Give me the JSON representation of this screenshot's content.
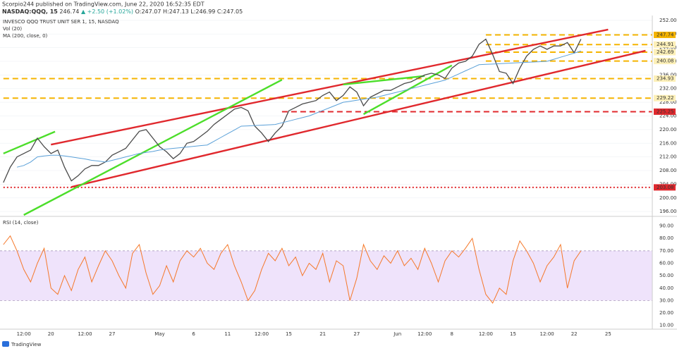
{
  "header": {
    "publisher": "Scorpio244 published on TradingView.com, June 22, 2020 16:52:35 EDT",
    "symbol": "NASDAQ:QQQ, 15",
    "price": "246.74",
    "change": "▲ +2.50 (+1.02%)",
    "ohlc": "O:247.07 H:247.13 L:246.99 C:247.05"
  },
  "footer": "TradingView",
  "chart_data": [
    {
      "type": "line",
      "vol_label": "Vol (20)",
      "categories": [
        null,
        null,
        null,
        "12:00",
        null,
        null,
        null,
        "20",
        null,
        null,
        null,
        null,
        "12:00",
        null,
        null,
        null,
        "27",
        null,
        null,
        null,
        null,
        null,
        null,
        "May",
        null,
        null,
        null,
        null,
        "6",
        null,
        null,
        null,
        null,
        "11",
        null,
        null,
        null,
        null,
        "12:00",
        null,
        null,
        null,
        "15",
        null,
        null,
        null,
        null,
        "21",
        null,
        null,
        null,
        null,
        "27",
        null,
        null,
        null,
        null,
        null,
        "Jun",
        null,
        null,
        null,
        "12:00",
        null,
        null,
        null,
        "8",
        null,
        null,
        null,
        null,
        "12:00",
        null,
        null,
        null,
        "15",
        null,
        null,
        null,
        null,
        "12:00",
        null,
        null,
        null,
        "22",
        null,
        null,
        null,
        null,
        "25",
        null,
        null,
        null,
        null,
        null,
        null
      ],
      "series": [
        {
          "name": "INVESCO QQQ TRUST UNIT SER 1, 15, NASDAQ",
          "color": "#4a4a4a",
          "values": [
            204.5,
            209,
            212,
            213,
            214,
            217.5,
            215,
            213,
            214,
            209,
            205,
            206.5,
            208.5,
            209.5,
            209.5,
            210.5,
            212.5,
            213.5,
            214.5,
            217,
            219.5,
            220,
            217.5,
            215,
            213.5,
            211.5,
            213,
            216,
            216.5,
            218,
            219.5,
            221.5,
            223,
            224.5,
            226,
            226.5,
            225.5,
            221,
            219,
            216.5,
            219,
            221,
            225.5,
            226.5,
            227.5,
            228,
            228.5,
            230,
            231,
            228.5,
            230,
            232.5,
            231,
            227,
            229.5,
            230.5,
            231.5,
            231.5,
            232.5,
            233.5,
            234,
            235,
            236,
            236.5,
            236,
            235,
            238,
            239.5,
            240,
            241.5,
            245,
            246.5,
            242,
            237,
            236.5,
            233.5,
            238,
            241.5,
            243.5,
            244.5,
            243.5,
            244.5,
            244.5,
            245.5,
            242.5,
            246.5,
            null,
            null,
            null,
            null,
            null,
            null,
            null,
            null,
            null,
            null
          ]
        },
        {
          "name": "MA (200, close, 0)",
          "color": "#5aa0d8",
          "values": [
            null,
            null,
            209,
            209.5,
            210.5,
            212,
            212.3,
            212.5,
            212.5,
            212.3,
            212,
            211.7,
            211.4,
            211,
            210.8,
            210.5,
            211,
            211.5,
            212,
            212.5,
            213,
            213.3,
            213.6,
            214,
            214.3,
            214.5,
            214.7,
            214.9,
            215.1,
            215.3,
            215.5,
            216.6,
            217.7,
            218.8,
            219.9,
            221,
            221.1,
            221.2,
            221.3,
            221.4,
            221.5,
            222,
            222.5,
            223,
            223.5,
            224,
            224.8,
            225.6,
            226.4,
            227.2,
            228,
            228.3,
            228.6,
            228.9,
            229.2,
            229.5,
            230,
            230.5,
            231,
            231.5,
            232,
            232.5,
            233,
            233.5,
            234,
            234.5,
            235.4,
            236.3,
            237.2,
            238.1,
            239,
            239.1,
            239.2,
            239.3,
            239.4,
            239.5,
            239.6,
            239.7,
            239.8,
            239.9,
            240,
            240.6,
            241.2,
            241.8,
            242.4,
            243,
            null,
            null,
            null,
            null,
            null,
            null,
            null,
            null,
            null,
            null
          ]
        }
      ],
      "ylim": [
        195,
        253
      ],
      "yticks": [
        {
          "value": 196,
          "label": "196.00"
        },
        {
          "value": 200,
          "label": "200.00"
        },
        {
          "value": 204,
          "label": "204.00"
        },
        {
          "value": 208,
          "label": "208.00"
        },
        {
          "value": 212,
          "label": "212.00"
        },
        {
          "value": 216,
          "label": "216.00"
        },
        {
          "value": 220,
          "label": "220.00"
        },
        {
          "value": 224,
          "label": "224.00"
        },
        {
          "value": 228,
          "label": "228.00"
        },
        {
          "value": 232,
          "label": "232.00"
        },
        {
          "value": 236,
          "label": "236.00"
        },
        {
          "value": 240,
          "label": "240.00"
        },
        {
          "value": 244,
          "label": "244.00"
        },
        {
          "value": 248,
          "label": "248.00"
        },
        {
          "value": 252,
          "label": "252.00"
        }
      ],
      "grid": true,
      "levels": [
        {
          "value": 247.74,
          "label": "247.74",
          "color": "#f5b400",
          "style": "dashed",
          "from": 71,
          "box": "#f5b400"
        },
        {
          "value": 244.91,
          "label": "244.91",
          "color": "#f5b400",
          "style": "dashed",
          "from": 71,
          "box": "#fdf0b8"
        },
        {
          "value": 242.69,
          "label": "242.69",
          "color": "#f5b400",
          "style": "dashed",
          "from": 71,
          "box": "#fdf0b8"
        },
        {
          "value": 240.08,
          "label": "240.08",
          "color": "#f5b400",
          "style": "dashed",
          "from": 71,
          "box": "#fdf0b8"
        },
        {
          "value": 234.93,
          "label": "234.93",
          "color": "#f5b400",
          "style": "dashed",
          "from": 0,
          "box": "#fdf0b8"
        },
        {
          "value": 229.22,
          "label": "229.22",
          "color": "#f5b400",
          "style": "dashed",
          "from": 0,
          "box": "#fdf0b8"
        },
        {
          "value": 225.25,
          "label": "225.25",
          "color": "#e0282d",
          "style": "dashed",
          "from": 41,
          "box": "#e0282d"
        },
        {
          "value": 203.08,
          "label": "203.08",
          "color": "#e0282d",
          "style": "dotted",
          "from": 0,
          "box": "#e0282d"
        }
      ],
      "trendlines": [
        {
          "color": "#e0282d",
          "from": [
            7,
            215.6
          ],
          "to": [
            89,
            249.3
          ]
        },
        {
          "color": "#e0282d",
          "from": [
            10,
            203.2
          ],
          "to": [
            94.5,
            243.1
          ]
        },
        {
          "color": "#4cde2a",
          "from": [
            0,
            213
          ],
          "to": [
            7.6,
            219.4
          ]
        },
        {
          "color": "#4cde2a",
          "from": [
            3,
            195
          ],
          "to": [
            41,
            234.6
          ]
        },
        {
          "color": "#4cde2a",
          "from": [
            53,
            224.5
          ],
          "to": [
            66,
            238.8
          ]
        },
        {
          "color": "#4cde2a",
          "from": [
            50,
            233.2
          ],
          "to": [
            62,
            235.7
          ]
        }
      ]
    },
    {
      "type": "line",
      "series": [
        {
          "name": "RSI (14, close)",
          "color": "#f5782a",
          "values": [
            75,
            82,
            70,
            55,
            45,
            60,
            72,
            40,
            35,
            50,
            38,
            55,
            65,
            45,
            58,
            70,
            62,
            50,
            40,
            68,
            75,
            52,
            35,
            42,
            58,
            45,
            62,
            70,
            65,
            72,
            60,
            55,
            68,
            75,
            58,
            45,
            30,
            38,
            55,
            68,
            62,
            72,
            58,
            65,
            50,
            60,
            55,
            68,
            45,
            62,
            58,
            30,
            48,
            75,
            62,
            55,
            66,
            60,
            70,
            58,
            64,
            55,
            72,
            60,
            45,
            62,
            70,
            65,
            72,
            80,
            55,
            35,
            28,
            40,
            35,
            62,
            78,
            70,
            60,
            45,
            58,
            65,
            75,
            40,
            62,
            70,
            null,
            null,
            null,
            null,
            null,
            null,
            null,
            null,
            null,
            null
          ]
        }
      ],
      "ylim": [
        7,
        96
      ],
      "yticks": [
        {
          "value": 10,
          "label": "10.00"
        },
        {
          "value": 20,
          "label": "20.00"
        },
        {
          "value": 30,
          "label": "30.00"
        },
        {
          "value": 40,
          "label": "40.00"
        },
        {
          "value": 50,
          "label": "50.00"
        },
        {
          "value": 60,
          "label": "60.00"
        },
        {
          "value": 70,
          "label": "70.00"
        },
        {
          "value": 80,
          "label": "80.00"
        },
        {
          "value": 90,
          "label": "90.00"
        }
      ],
      "band": [
        30,
        70
      ],
      "band_color": "#efe3fb"
    }
  ]
}
